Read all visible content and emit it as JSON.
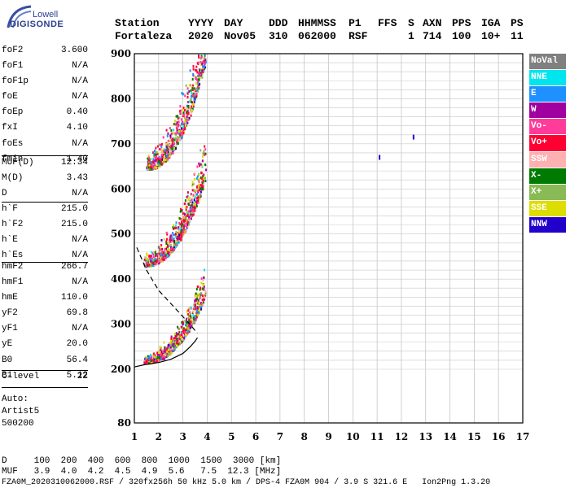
{
  "logo": {
    "company": "Lowell",
    "product": "DIGISONDE"
  },
  "header": {
    "labels": [
      "Station",
      "YYYY",
      "DAY",
      "DDD",
      "HHMMSS",
      "P1",
      "FFS",
      "S",
      "AXN",
      "PPS",
      "IGA",
      "PS"
    ],
    "values": [
      "Fortaleza",
      "2020",
      "Nov05",
      "310",
      "062000",
      "RSF",
      "",
      "1",
      "714",
      "100",
      "10+",
      "11"
    ]
  },
  "params": {
    "group1": [
      {
        "name": "foF2",
        "value": "3.600"
      },
      {
        "name": "foF1",
        "value": "N/A"
      },
      {
        "name": "foF1p",
        "value": "N/A"
      },
      {
        "name": "foE",
        "value": "N/A"
      },
      {
        "name": "foEp",
        "value": "0.40"
      },
      {
        "name": "fxI",
        "value": "4.10"
      },
      {
        "name": "foEs",
        "value": "N/A"
      },
      {
        "name": "fmin",
        "value": "1.40"
      }
    ],
    "group2": [
      {
        "name": "MUF(D)",
        "value": "12.34"
      },
      {
        "name": "M(D)",
        "value": "3.43"
      },
      {
        "name": "D",
        "value": "N/A"
      }
    ],
    "group3": [
      {
        "name": "h`F",
        "value": "215.0"
      },
      {
        "name": "h`F2",
        "value": "215.0"
      },
      {
        "name": "h`E",
        "value": "N/A"
      },
      {
        "name": "h`Es",
        "value": "N/A"
      }
    ],
    "group4": [
      {
        "name": "hmF2",
        "value": "266.7"
      },
      {
        "name": "hmF1",
        "value": "N/A"
      },
      {
        "name": "hmE",
        "value": "110.0"
      },
      {
        "name": "yF2",
        "value": "69.8"
      },
      {
        "name": "yF1",
        "value": "N/A"
      },
      {
        "name": "yE",
        "value": "20.0"
      },
      {
        "name": "B0",
        "value": "56.4"
      },
      {
        "name": "B1",
        "value": "5.12"
      }
    ],
    "clevel": {
      "name": "C-level",
      "value": "22"
    },
    "auto": [
      "Auto:",
      "Artist5",
      "500200"
    ]
  },
  "legend": [
    {
      "label": "NoVal",
      "color": "#808080",
      "text": "#ffffff"
    },
    {
      "label": "NNE",
      "color": "#00e5ee",
      "text": "#ffffff"
    },
    {
      "label": "E",
      "color": "#1e90ff",
      "text": "#ffffff"
    },
    {
      "label": "W",
      "color": "#a000a0",
      "text": "#ffffff"
    },
    {
      "label": "Vo-",
      "color": "#ff3c9a",
      "text": "#ffffff"
    },
    {
      "label": "Vo+",
      "color": "#ff0033",
      "text": "#ffffff"
    },
    {
      "label": "SSW",
      "color": "#ffb0b0",
      "text": "#ffffff"
    },
    {
      "label": "X-",
      "color": "#007a00",
      "text": "#ffffff"
    },
    {
      "label": "X+",
      "color": "#88bb55",
      "text": "#ffffff"
    },
    {
      "label": "SSE",
      "color": "#dddd00",
      "text": "#ffffff"
    },
    {
      "label": "NNW",
      "color": "#2200cc",
      "text": "#ffffff"
    }
  ],
  "footer": {
    "d_row": "D     100  200  400  600  800  1000  1500  3000 [km]",
    "muf_row": "MUF   3.9  4.0  4.2  4.5  4.9  5.6   7.5  12.3 [MHz]",
    "status": "FZA0M_2020310062000.RSF / 320fx256h 50 kHz 5.0 km / DPS-4 FZA0M 904 / 3.9 S 321.6 E   Ion2Png 1.3.20"
  },
  "chart_data": {
    "type": "scatter",
    "xlim": [
      1,
      17
    ],
    "ylim": [
      80,
      900
    ],
    "x_ticks": [
      1,
      2,
      3,
      4,
      5,
      6,
      7,
      8,
      9,
      10,
      11,
      12,
      13,
      14,
      15,
      16,
      17
    ],
    "y_ticks": [
      80,
      200,
      300,
      400,
      500,
      600,
      700,
      800,
      900
    ],
    "grid": true,
    "legend_position": "right",
    "traces": [
      {
        "name": "F2 first hop",
        "x_start": 1.4,
        "x_end": 3.9,
        "h_start": 215,
        "h_end": 360,
        "spread": 60
      },
      {
        "name": "F2 second hop",
        "x_start": 1.4,
        "x_end": 3.9,
        "h_start": 430,
        "h_end": 620,
        "spread": 90
      },
      {
        "name": "F2 third hop",
        "x_start": 1.5,
        "x_end": 3.9,
        "h_start": 645,
        "h_end": 880,
        "spread": 110
      }
    ],
    "profile_curve": {
      "x": [
        1.0,
        1.4,
        2.0,
        2.5,
        3.0,
        3.3,
        3.5,
        3.6
      ],
      "y": [
        205,
        210,
        215,
        222,
        235,
        250,
        262,
        270
      ]
    },
    "dashed_curve": {
      "x": [
        1.1,
        1.5,
        2.0,
        2.6,
        3.2,
        3.6
      ],
      "y": [
        470,
        420,
        375,
        340,
        305,
        280
      ]
    },
    "isolated_points": [
      {
        "x": 11.1,
        "y": 670
      },
      {
        "x": 12.5,
        "y": 715
      }
    ]
  }
}
